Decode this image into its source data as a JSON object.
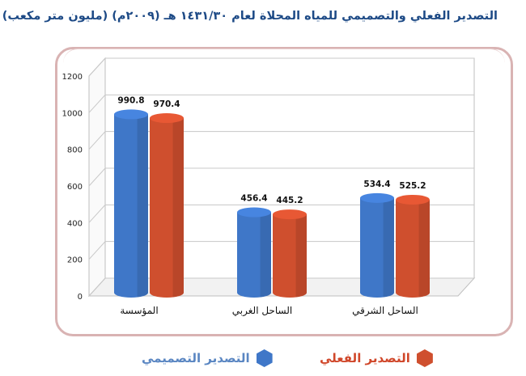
{
  "title": "التصدير الفعلي والتصميمي للمياه المحلاة لعام ١٤٣١/٣٠ هـ (٢٠٠٩م) (مليون متر مكعب)",
  "colors": {
    "design": "#3f77c8",
    "actual": "#cf4f2e",
    "frame": "#d9b3b3"
  },
  "chart_data": {
    "type": "bar",
    "title": "التصدير الفعلي والتصميمي للمياه المحلاة لعام ١٤٣١/٣٠ هـ (٢٠٠٩م) (مليون متر مكعب)",
    "categories": [
      "المؤسسة",
      "الساحل الغربي",
      "الساحل الشرقي"
    ],
    "series": [
      {
        "name": "التصدير التصميمي",
        "values": [
          990.8,
          456.4,
          534.4
        ],
        "labels": [
          "990.8",
          "456.4",
          "534.4"
        ],
        "color": "#3f77c8"
      },
      {
        "name": "التصدير الفعلي",
        "values": [
          970.4,
          445.2,
          525.2
        ],
        "labels": [
          "970.4",
          "445.2",
          "525.2"
        ],
        "color": "#cf4f2e"
      }
    ],
    "ylim": [
      0,
      1200
    ],
    "yticks": [
      "0",
      "200",
      "400",
      "600",
      "800",
      "1000",
      "1200"
    ],
    "grid": true,
    "legend_position": "bottom"
  },
  "legend": [
    {
      "label": "التصدير التصميمي",
      "color": "#3f77c8",
      "text_color": "#5a86c2"
    },
    {
      "label": "التصدير الفعلي",
      "color": "#cf4f2e",
      "text_color": "#d0472a"
    }
  ]
}
